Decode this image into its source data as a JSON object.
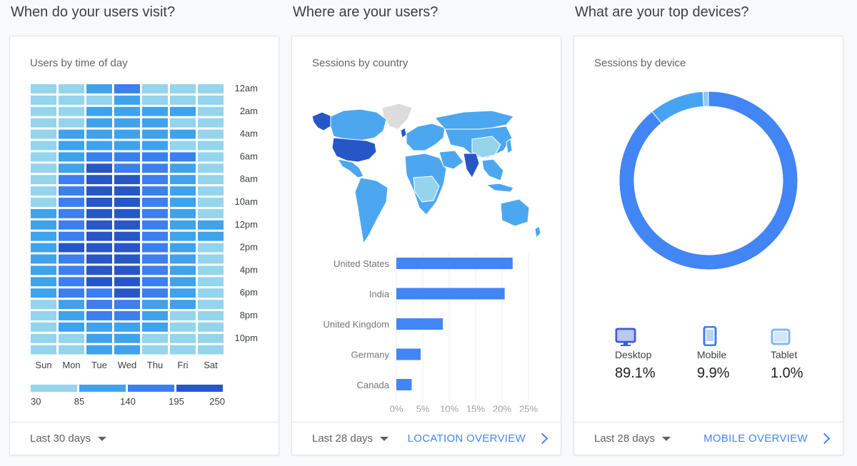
{
  "colors": {
    "level1": "#94d4ec",
    "level2": "#3fa2ec",
    "level3": "#3c7fee",
    "level4": "#2757c7",
    "land": "#4ca7f0",
    "na": "#dcdcdc",
    "accent": "#4285f4"
  },
  "section1": {
    "title": "When do your users visit?",
    "card_title": "Users by time of day",
    "days": [
      "Sun",
      "Mon",
      "Tue",
      "Wed",
      "Thu",
      "Fri",
      "Sat"
    ],
    "hours": [
      "12am",
      "2am",
      "4am",
      "6am",
      "8am",
      "10am",
      "12pm",
      "2pm",
      "4pm",
      "6pm",
      "8pm",
      "10pm"
    ],
    "heat_levels": [
      [
        1,
        1,
        2,
        3,
        1,
        1,
        1
      ],
      [
        1,
        1,
        1,
        2,
        1,
        1,
        1
      ],
      [
        1,
        1,
        2,
        2,
        2,
        2,
        1
      ],
      [
        1,
        1,
        2,
        2,
        2,
        1,
        1
      ],
      [
        1,
        2,
        2,
        2,
        2,
        2,
        1
      ],
      [
        1,
        2,
        2,
        2,
        2,
        1,
        1
      ],
      [
        1,
        2,
        3,
        3,
        3,
        3,
        1
      ],
      [
        1,
        2,
        4,
        3,
        3,
        2,
        1
      ],
      [
        1,
        3,
        4,
        4,
        3,
        2,
        1
      ],
      [
        1,
        3,
        4,
        4,
        3,
        2,
        1
      ],
      [
        1,
        3,
        4,
        4,
        3,
        2,
        1
      ],
      [
        2,
        3,
        4,
        4,
        3,
        2,
        1
      ],
      [
        2,
        3,
        4,
        4,
        3,
        2,
        2
      ],
      [
        2,
        3,
        4,
        4,
        3,
        2,
        2
      ],
      [
        2,
        4,
        4,
        4,
        3,
        2,
        1
      ],
      [
        2,
        3,
        4,
        4,
        3,
        2,
        1
      ],
      [
        2,
        3,
        4,
        4,
        3,
        2,
        1
      ],
      [
        2,
        3,
        4,
        4,
        3,
        2,
        1
      ],
      [
        2,
        3,
        3,
        4,
        3,
        2,
        1
      ],
      [
        1,
        2,
        3,
        3,
        2,
        2,
        1
      ],
      [
        1,
        2,
        3,
        3,
        2,
        1,
        1
      ],
      [
        1,
        2,
        2,
        2,
        2,
        1,
        1
      ],
      [
        1,
        1,
        2,
        2,
        1,
        1,
        1
      ],
      [
        1,
        1,
        2,
        2,
        1,
        1,
        1
      ]
    ],
    "legend_ticks": [
      "30",
      "85",
      "140",
      "195",
      "250"
    ],
    "range_label": "Last 30 days"
  },
  "section2": {
    "title": "Where are your users?",
    "card_title": "Sessions by country",
    "bars": {
      "categories": [
        "United States",
        "India",
        "United Kingdom",
        "Germany",
        "Canada"
      ],
      "values": [
        22,
        20.5,
        8.8,
        4.6,
        2.9
      ],
      "xlim": [
        0,
        25
      ],
      "ticks": [
        "0%",
        "5%",
        "10%",
        "15%",
        "20%",
        "25%"
      ]
    },
    "range_label": "Last 28 days",
    "link_label": "LOCATION OVERVIEW"
  },
  "section3": {
    "title": "What are your top devices?",
    "card_title": "Sessions by device",
    "devices": [
      {
        "label": "Desktop",
        "value": "89.1%",
        "pct": 89.1,
        "color": "#4285f4",
        "icon": "desktop-icon"
      },
      {
        "label": "Mobile",
        "value": "9.9%",
        "pct": 9.9,
        "color": "#46a3f2",
        "icon": "mobile-icon"
      },
      {
        "label": "Tablet",
        "value": "1.0%",
        "pct": 1.0,
        "color": "#8ec8f5",
        "icon": "tablet-icon"
      }
    ],
    "range_label": "Last 28 days",
    "link_label": "MOBILE OVERVIEW"
  }
}
